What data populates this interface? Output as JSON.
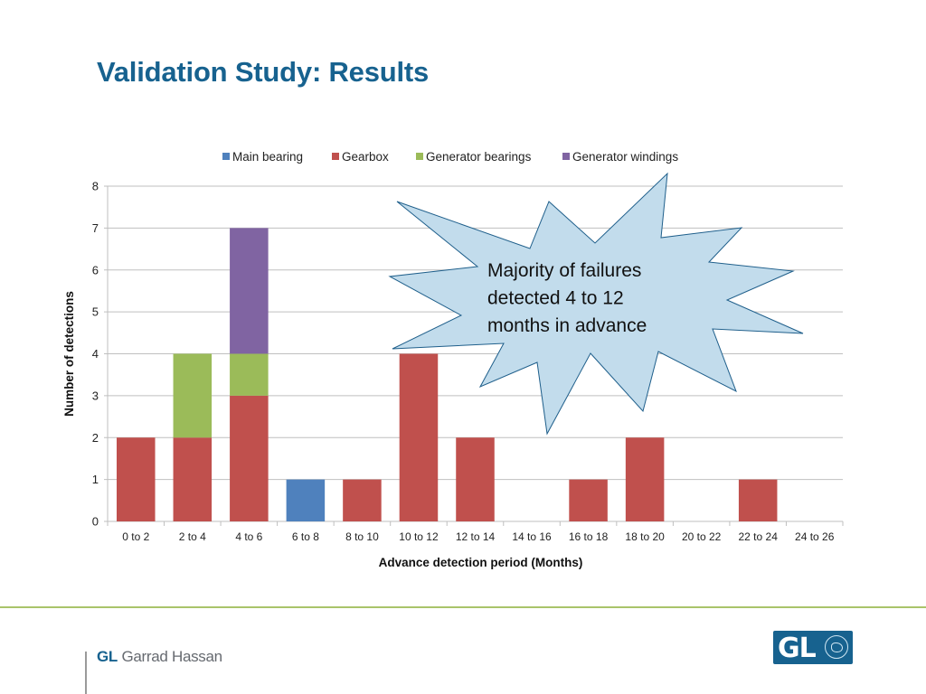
{
  "slide": {
    "title": "Validation Study: Results"
  },
  "callout": {
    "lines": [
      "Majority of failures",
      "detected 4 to 12",
      "months in advance"
    ],
    "fill": "#c2dcec",
    "stroke": "#1f5f8b"
  },
  "footer": {
    "brand_prefix": "GL",
    "brand_name": " Garrad Hassan",
    "logo_text": "GL",
    "accent_color": "#a9c46a"
  },
  "chart_data": {
    "type": "bar",
    "stacked": true,
    "title": "",
    "xlabel": "Advance detection period (Months)",
    "ylabel": "Number of detections",
    "ylim": [
      0,
      8
    ],
    "yticks": [
      0,
      1,
      2,
      3,
      4,
      5,
      6,
      7,
      8
    ],
    "grid": true,
    "legend_position": "top",
    "categories": [
      "0 to 2",
      "2 to 4",
      "4 to 6",
      "6 to 8",
      "8 to 10",
      "10 to 12",
      "12 to 14",
      "14 to 16",
      "16 to 18",
      "18 to 20",
      "20 to 22",
      "22 to 24",
      "24 to 26"
    ],
    "series": [
      {
        "name": "Main bearing",
        "color": "#4f81bd",
        "values": [
          0,
          0,
          0,
          1,
          0,
          0,
          0,
          0,
          0,
          0,
          0,
          0,
          0
        ]
      },
      {
        "name": "Gearbox",
        "color": "#c0504d",
        "values": [
          2,
          2,
          3,
          0,
          1,
          4,
          2,
          0,
          1,
          2,
          0,
          1,
          0
        ]
      },
      {
        "name": "Generator bearings",
        "color": "#9bbb59",
        "values": [
          0,
          2,
          1,
          0,
          0,
          0,
          0,
          0,
          0,
          0,
          0,
          0,
          0
        ]
      },
      {
        "name": "Generator windings",
        "color": "#8064a2",
        "values": [
          0,
          0,
          3,
          0,
          0,
          0,
          0,
          0,
          0,
          0,
          0,
          0,
          0
        ]
      }
    ]
  }
}
